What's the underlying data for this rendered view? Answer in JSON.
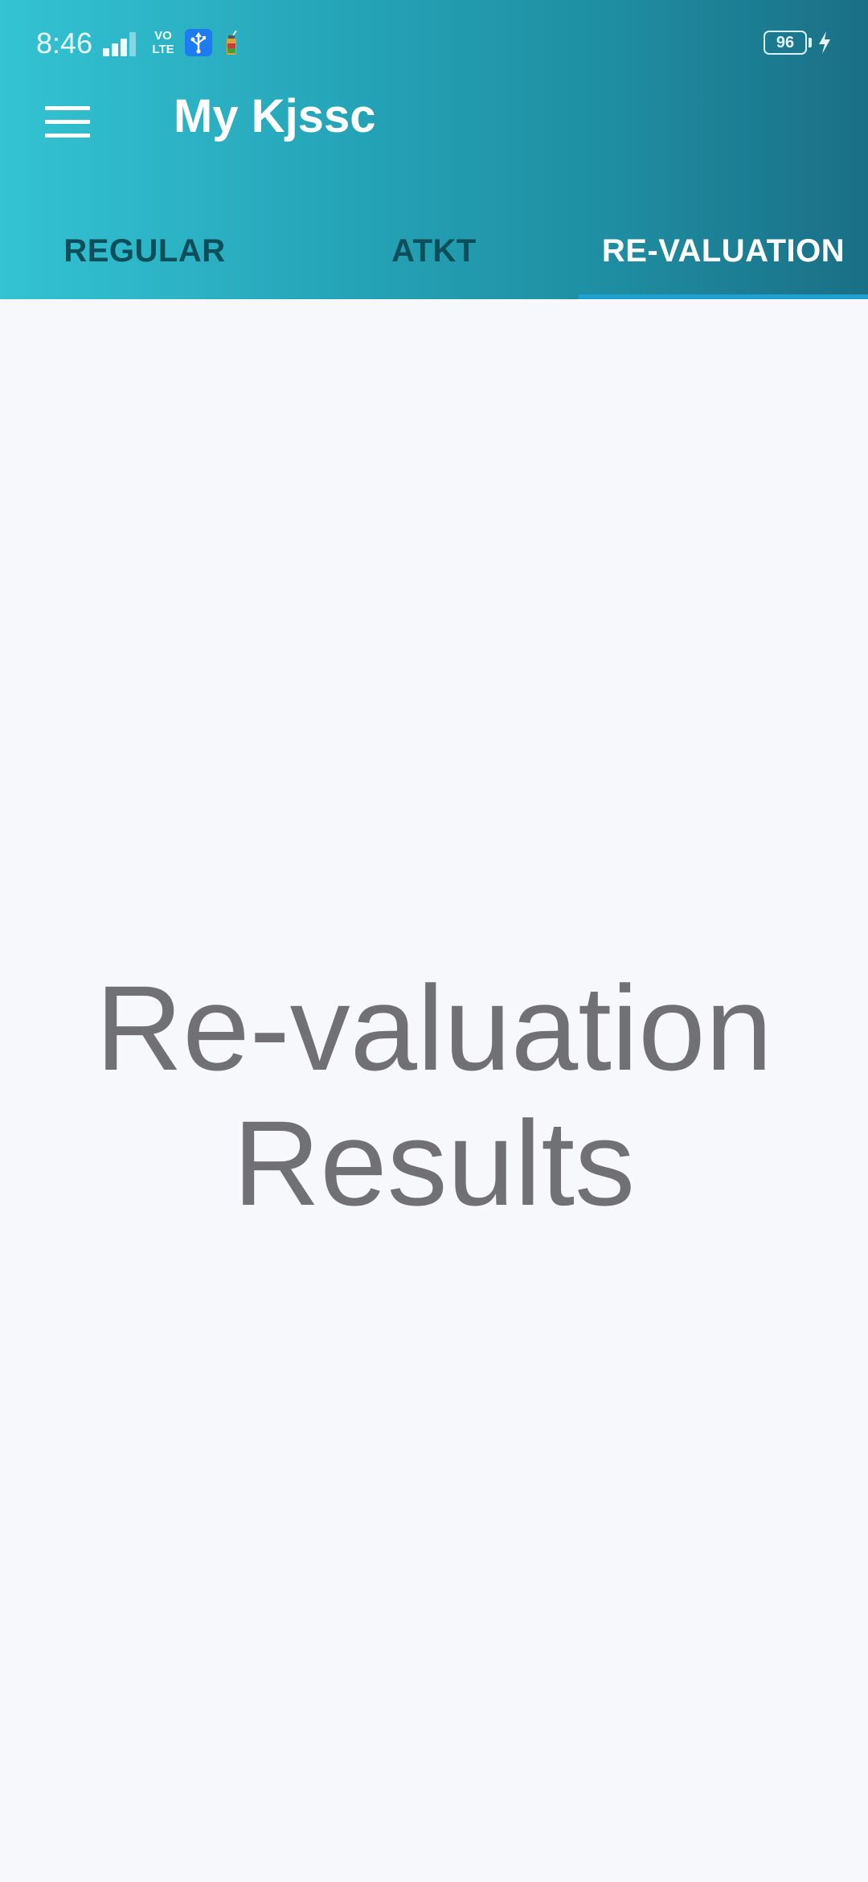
{
  "status_bar": {
    "time": "8:46",
    "network": "VO\nLTE",
    "battery": "96",
    "icons": {
      "signal": "signal-bars-icon",
      "usb": "usb-icon",
      "app_notification": "jar-icon",
      "charging": "lightning-bolt-icon"
    }
  },
  "toolbar": {
    "title": "My Kjssc",
    "menu_icon": "hamburger-menu-icon"
  },
  "tabs": [
    {
      "label": "REGULAR",
      "active": false
    },
    {
      "label": "ATKT",
      "active": false
    },
    {
      "label": "RE-VALUATION",
      "active": true
    }
  ],
  "content": {
    "line1": "Re-valuation",
    "line2": "Results"
  },
  "colors": {
    "header_start": "#33c3d3",
    "header_end": "#1a6f86",
    "tab_inactive": "#0d4e5b",
    "tab_active": "#ffffff",
    "indicator": "#1ea0d2",
    "background": "#f7f8fc",
    "content_text": "#717075"
  }
}
